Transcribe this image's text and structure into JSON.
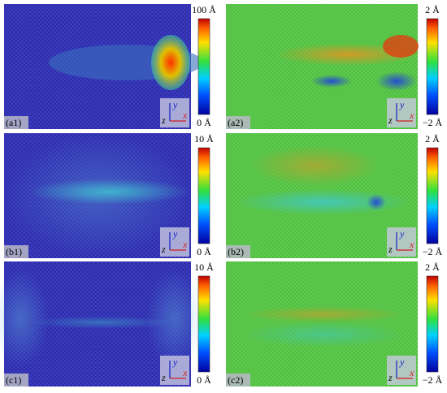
{
  "panels": [
    {
      "label": "(a1)",
      "colorbar": {
        "max": "100 Å",
        "min": "0 Å"
      },
      "axes": [
        "y",
        "z",
        "x"
      ]
    },
    {
      "label": "(a2)",
      "colorbar": {
        "max": "2 Å",
        "min": "−2 Å"
      },
      "axes": [
        "y",
        "z",
        "x"
      ]
    },
    {
      "label": "(b1)",
      "colorbar": {
        "max": "10 Å",
        "min": "0 Å"
      },
      "axes": [
        "y",
        "z",
        "x"
      ]
    },
    {
      "label": "(b2)",
      "colorbar": {
        "max": "2 Å",
        "min": "−2 Å"
      },
      "axes": [
        "y",
        "z",
        "x"
      ]
    },
    {
      "label": "(c1)",
      "colorbar": {
        "max": "10 Å",
        "min": "0 Å"
      },
      "axes": [
        "y",
        "z",
        "x"
      ]
    },
    {
      "label": "(c2)",
      "colorbar": {
        "max": "2 Å",
        "min": "−2 Å"
      },
      "axes": [
        "y",
        "z",
        "x"
      ]
    }
  ]
}
